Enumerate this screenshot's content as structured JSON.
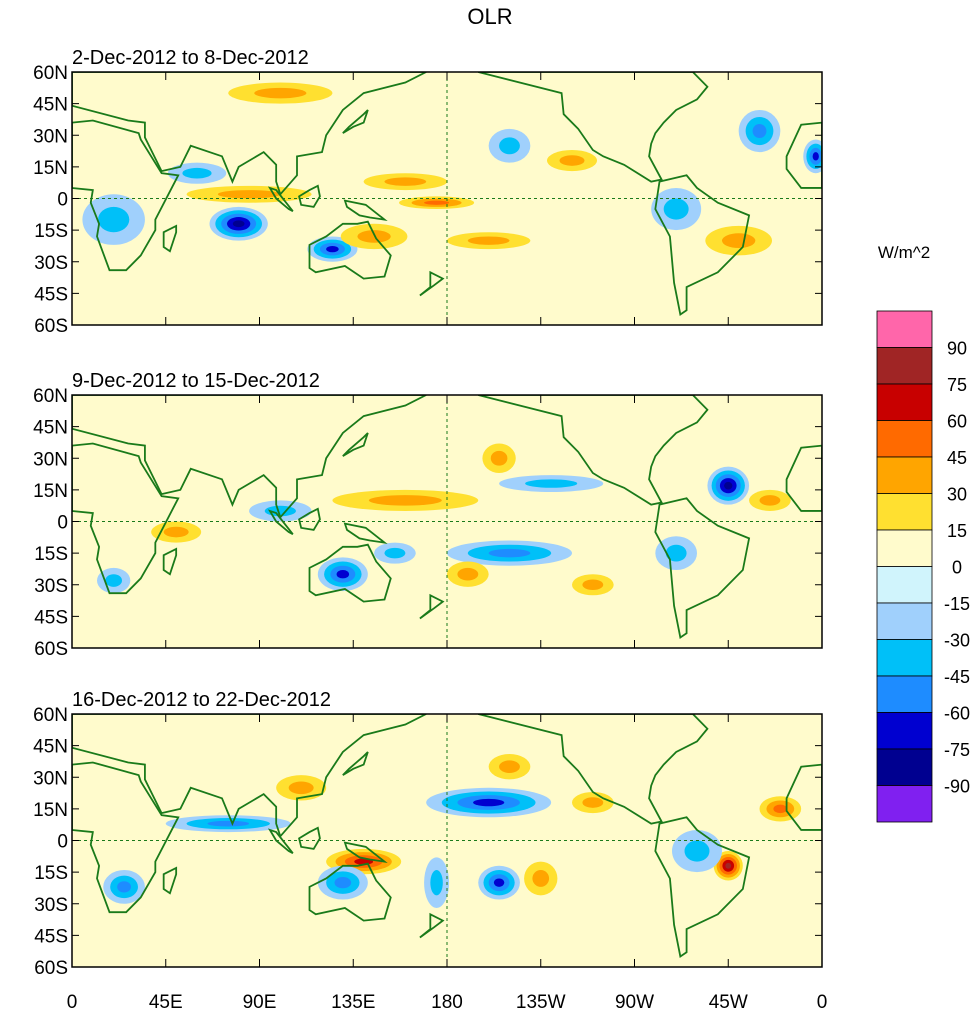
{
  "title": "OLR",
  "units": "W/m^2",
  "colorbar": {
    "labels": [
      "90",
      "75",
      "60",
      "45",
      "30",
      "15",
      "0",
      "-15",
      "-30",
      "-45",
      "-60",
      "-75",
      "-90"
    ],
    "colors": [
      "#ff66aa",
      "#a02525",
      "#c80000",
      "#ff6a00",
      "#ffa500",
      "#ffe030",
      "#fffbcc",
      "#d0f4fc",
      "#a0d0fc",
      "#00c0f8",
      "#1e8cff",
      "#0000d0",
      "#000090",
      "#8020f0"
    ],
    "levels": [
      90,
      75,
      60,
      45,
      30,
      15,
      0,
      -15,
      -30,
      -45,
      -60,
      -75,
      -90
    ]
  },
  "axes": {
    "lat_labels": [
      "60N",
      "45N",
      "30N",
      "15N",
      "0",
      "15S",
      "30S",
      "45S",
      "60S"
    ],
    "lat_values": [
      60,
      45,
      30,
      15,
      0,
      -15,
      -30,
      -45,
      -60
    ],
    "lon_labels": [
      "0",
      "45E",
      "90E",
      "135E",
      "180",
      "135W",
      "90W",
      "45W",
      "0"
    ],
    "lon_values": [
      0,
      45,
      90,
      135,
      180,
      225,
      270,
      315,
      360
    ]
  },
  "panels": [
    {
      "title": "2-Dec-2012 to 8-Dec-2012",
      "anomalies": [
        {
          "lon": 80,
          "lat": -12,
          "rlon": 14,
          "rlat": 8,
          "v": -70
        },
        {
          "lon": 125,
          "lat": -24,
          "rlon": 12,
          "rlat": 6,
          "v": -50
        },
        {
          "lon": 85,
          "lat": 2,
          "rlon": 30,
          "rlat": 4,
          "v": 25
        },
        {
          "lon": 175,
          "lat": -2,
          "rlon": 18,
          "rlat": 3,
          "v": 35
        },
        {
          "lon": 160,
          "lat": 8,
          "rlon": 20,
          "rlat": 4,
          "v": 20
        },
        {
          "lon": 145,
          "lat": -18,
          "rlon": 16,
          "rlat": 6,
          "v": 25
        },
        {
          "lon": 210,
          "lat": 25,
          "rlon": 10,
          "rlat": 8,
          "v": -25
        },
        {
          "lon": 240,
          "lat": 18,
          "rlon": 12,
          "rlat": 5,
          "v": 30
        },
        {
          "lon": 330,
          "lat": 32,
          "rlon": 10,
          "rlat": 10,
          "v": -35
        },
        {
          "lon": 357,
          "lat": 20,
          "rlon": 6,
          "rlat": 8,
          "v": -55
        },
        {
          "lon": 320,
          "lat": -20,
          "rlon": 16,
          "rlat": 7,
          "v": 30
        },
        {
          "lon": 290,
          "lat": -5,
          "rlon": 12,
          "rlat": 10,
          "v": -20
        },
        {
          "lon": 20,
          "lat": -10,
          "rlon": 15,
          "rlat": 12,
          "v": -20
        },
        {
          "lon": 60,
          "lat": 12,
          "rlon": 14,
          "rlat": 5,
          "v": -20
        },
        {
          "lon": 200,
          "lat": -20,
          "rlon": 20,
          "rlat": 4,
          "v": 20
        },
        {
          "lon": 100,
          "lat": 50,
          "rlon": 25,
          "rlat": 5,
          "v": 20
        }
      ]
    },
    {
      "title": "9-Dec-2012 to 15-Dec-2012",
      "anomalies": [
        {
          "lon": 160,
          "lat": 10,
          "rlon": 35,
          "rlat": 5,
          "v": 30
        },
        {
          "lon": 210,
          "lat": -15,
          "rlon": 30,
          "rlat": 6,
          "v": -40
        },
        {
          "lon": 130,
          "lat": -25,
          "rlon": 12,
          "rlat": 8,
          "v": -50
        },
        {
          "lon": 315,
          "lat": 17,
          "rlon": 10,
          "rlat": 9,
          "v": -70
        },
        {
          "lon": 335,
          "lat": 10,
          "rlon": 10,
          "rlat": 5,
          "v": 30
        },
        {
          "lon": 205,
          "lat": 30,
          "rlon": 8,
          "rlat": 7,
          "v": 30
        },
        {
          "lon": 230,
          "lat": 18,
          "rlon": 25,
          "rlat": 4,
          "v": -30
        },
        {
          "lon": 50,
          "lat": -5,
          "rlon": 12,
          "rlat": 5,
          "v": 25
        },
        {
          "lon": 100,
          "lat": 5,
          "rlon": 15,
          "rlat": 5,
          "v": -30
        },
        {
          "lon": 20,
          "lat": -28,
          "rlon": 8,
          "rlat": 6,
          "v": -30
        },
        {
          "lon": 155,
          "lat": -15,
          "rlon": 10,
          "rlat": 5,
          "v": -30
        },
        {
          "lon": 190,
          "lat": -25,
          "rlon": 10,
          "rlat": 6,
          "v": 20
        },
        {
          "lon": 290,
          "lat": -15,
          "rlon": 10,
          "rlat": 8,
          "v": -25
        },
        {
          "lon": 250,
          "lat": -30,
          "rlon": 10,
          "rlat": 5,
          "v": 20
        }
      ]
    },
    {
      "title": "16-Dec-2012 to 22-Dec-2012",
      "anomalies": [
        {
          "lon": 200,
          "lat": 18,
          "rlon": 30,
          "rlat": 7,
          "v": -50
        },
        {
          "lon": 140,
          "lat": -10,
          "rlon": 18,
          "rlat": 6,
          "v": 50
        },
        {
          "lon": 315,
          "lat": -12,
          "rlon": 7,
          "rlat": 7,
          "v": 70
        },
        {
          "lon": 205,
          "lat": -20,
          "rlon": 10,
          "rlat": 8,
          "v": -60
        },
        {
          "lon": 130,
          "lat": -20,
          "rlon": 12,
          "rlat": 8,
          "v": -45
        },
        {
          "lon": 75,
          "lat": 8,
          "rlon": 30,
          "rlat": 4,
          "v": -40
        },
        {
          "lon": 340,
          "lat": 15,
          "rlon": 10,
          "rlat": 6,
          "v": 35
        },
        {
          "lon": 210,
          "lat": 35,
          "rlon": 10,
          "rlat": 6,
          "v": 20
        },
        {
          "lon": 250,
          "lat": 18,
          "rlon": 10,
          "rlat": 5,
          "v": 30
        },
        {
          "lon": 225,
          "lat": -18,
          "rlon": 8,
          "rlat": 8,
          "v": 30
        },
        {
          "lon": 25,
          "lat": -22,
          "rlon": 10,
          "rlat": 8,
          "v": -35
        },
        {
          "lon": 300,
          "lat": -5,
          "rlon": 12,
          "rlat": 10,
          "v": -30
        },
        {
          "lon": 110,
          "lat": 25,
          "rlon": 12,
          "rlat": 6,
          "v": 20
        },
        {
          "lon": 175,
          "lat": -20,
          "rlon": 6,
          "rlat": 12,
          "v": -20
        }
      ]
    }
  ]
}
